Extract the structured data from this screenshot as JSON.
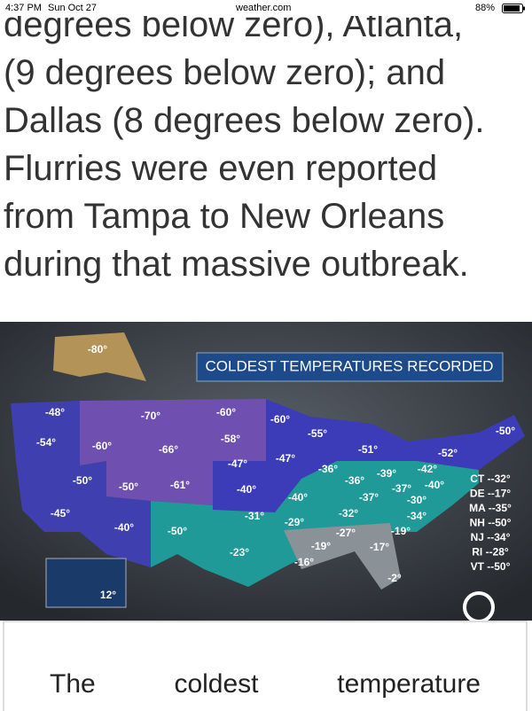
{
  "status_bar": {
    "time": "4:37 PM",
    "date": "Sun Oct 27",
    "url": "weather.com",
    "battery": "88%"
  },
  "article": {
    "lines": [
      "degrees below zero), Atlanta,",
      "(9 degrees below zero); and",
      "Dallas (8 degrees below zero).",
      "Flurries were even reported",
      "from Tampa to New Orleans",
      "during that massive outbreak."
    ]
  },
  "map": {
    "title": "COLDEST TEMPERATURES RECORDED",
    "temperatures": [
      "-80°",
      "-48°",
      "-70°",
      "-60°",
      "-60°",
      "-54°",
      "-60°",
      "-66°",
      "-58°",
      "-55°",
      "-51°",
      "-52°",
      "-50°",
      "-47°",
      "-47°",
      "-36°",
      "-36°",
      "-39°",
      "-42°",
      "-40°",
      "-37°",
      "-37°",
      "-30°",
      "-50°",
      "-50°",
      "-61°",
      "-40°",
      "-40°",
      "-45°",
      "-31°",
      "-29°",
      "-32°",
      "-34°",
      "-40°",
      "-50°",
      "-27°",
      "-19°",
      "-19°",
      "-17°",
      "-23°",
      "-16°",
      "-2°",
      "12°"
    ],
    "legend": [
      "CT --32°",
      "DE --17°",
      "MA --35°",
      "NH --50°",
      "NJ --34°",
      "RI --28°",
      "VT --50°"
    ]
  },
  "caption": "The coldest temperature"
}
